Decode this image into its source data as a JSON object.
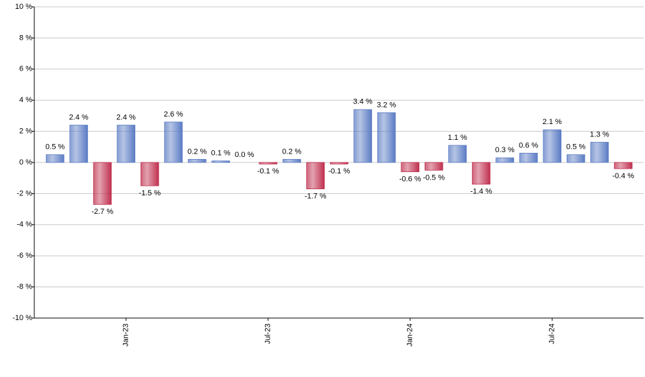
{
  "chart_data": {
    "type": "bar",
    "categories": [
      null,
      null,
      null,
      "Jan-23",
      null,
      null,
      null,
      null,
      null,
      "Jul-23",
      null,
      null,
      null,
      null,
      null,
      "Jan-24",
      null,
      null,
      null,
      null,
      null,
      "Jul-24",
      null,
      null,
      null
    ],
    "values": [
      0.5,
      2.4,
      -2.7,
      2.4,
      -1.5,
      2.6,
      0.2,
      0.1,
      0.0,
      -0.1,
      0.2,
      -1.7,
      -0.1,
      3.4,
      3.2,
      -0.6,
      -0.5,
      1.1,
      -1.4,
      0.3,
      0.6,
      2.1,
      0.5,
      1.3,
      -0.4
    ],
    "value_labels": [
      "0.5 %",
      "2.4 %",
      "-2.7 %",
      "2.4 %",
      "-1.5 %",
      "2.6 %",
      "0.2 %",
      "0.1 %",
      "0.0 %",
      "-0.1 %",
      "0.2 %",
      "-1.7 %",
      "-0.1 %",
      "3.4 %",
      "3.2 %",
      "-0.6 %",
      "-0.5 %",
      "1.1 %",
      "-1.4 %",
      "0.3 %",
      "0.6 %",
      "2.1 %",
      "0.5 %",
      "1.3 %",
      "-0.4 %"
    ],
    "color": "#5b7cc4",
    "negative_color": "#c0304f",
    "ylim": [
      -10,
      10
    ],
    "yticks": [
      {
        "value": -10,
        "label": "-10 %"
      },
      {
        "value": -8,
        "label": "-8 %"
      },
      {
        "value": -6,
        "label": "-6 %"
      },
      {
        "value": -4,
        "label": "-4 %"
      },
      {
        "value": -2,
        "label": "-2 %"
      },
      {
        "value": 0,
        "label": "0 %"
      },
      {
        "value": 2,
        "label": "2 %"
      },
      {
        "value": 4,
        "label": "4 %"
      },
      {
        "value": 6,
        "label": "6 %"
      },
      {
        "value": 8,
        "label": "8 %"
      },
      {
        "value": 10,
        "label": "10 %"
      }
    ],
    "grid": true
  }
}
